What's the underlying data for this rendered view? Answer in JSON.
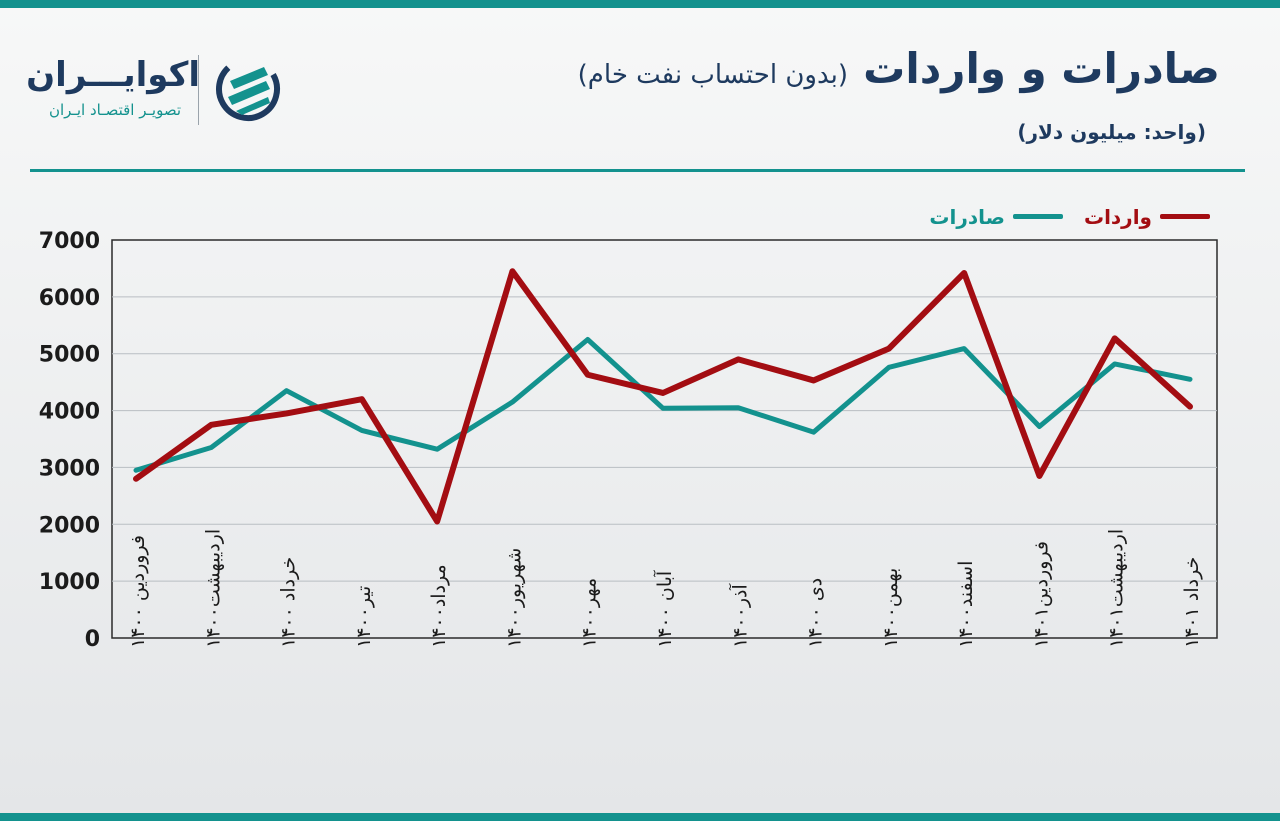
{
  "header": {
    "title": "صادرات و واردات",
    "subtitle": "(بدون احتساب نفت خام)",
    "unit": "(واحد: میلیون دلار)"
  },
  "brand": {
    "name": "اکوایـــران",
    "tagline": "تصویـر اقتصـاد ایـران",
    "logo_icon": "ekoiran-logo-icon"
  },
  "colors": {
    "accent": "#13928e",
    "navy": "#1e3a5f",
    "exports": "#13928e",
    "imports": "#a30d12"
  },
  "chart_data": {
    "type": "line",
    "title": "صادرات و واردات",
    "ylim": [
      0,
      7000
    ],
    "yticks": [
      "0",
      "1000",
      "2000",
      "3000",
      "4000",
      "5000",
      "6000",
      "7000"
    ],
    "categories": [
      "فروردین ۱۴۰۰",
      "اردیبهشت۱۴۰۰",
      "خرداد ۱۴۰۰",
      "تیر۱۴۰۰",
      "مرداد۱۴۰۰",
      "شهریور۱۴۰۰",
      "مهر۱۴۰۰",
      "آبان ۱۴۰۰",
      "آذر۱۴۰۰",
      "دی ۱۴۰۰",
      "بهمن۱۴۰۰",
      "اسفند۱۴۰۰",
      "فروردین۱۴۰۱",
      "اردیبهشت۱۴۰۱",
      "خرداد ۱۴۰۱"
    ],
    "series": [
      {
        "name": "صادرات",
        "color": "#13928e",
        "values": [
          2950,
          3350,
          4350,
          3650,
          3320,
          4150,
          5250,
          4040,
          4050,
          3620,
          4760,
          5090,
          3720,
          4820,
          4550
        ]
      },
      {
        "name": "واردات",
        "color": "#a30d12",
        "values": [
          2800,
          3750,
          3950,
          4200,
          2050,
          6450,
          4630,
          4310,
          4900,
          4530,
          5090,
          6420,
          2850,
          5270,
          4070
        ]
      }
    ],
    "grid": true,
    "legend_position": "top-right"
  }
}
